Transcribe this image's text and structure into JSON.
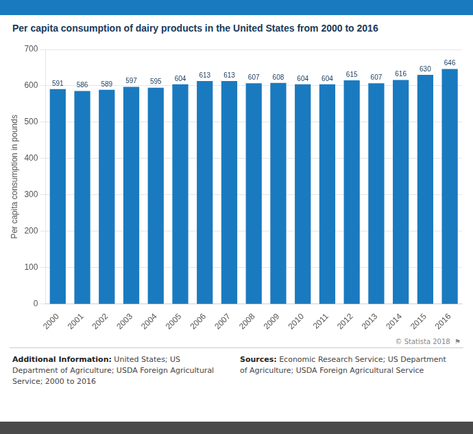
{
  "chart_data": {
    "type": "bar",
    "title": "Per capita consumption of dairy products in the United States from 2000 to 2016",
    "y_label": "Per capita consumption in pounds",
    "categories": [
      "2000",
      "2001",
      "2002",
      "2003",
      "2004",
      "2005",
      "2006",
      "2007",
      "2008",
      "2009",
      "2010",
      "2011",
      "2012",
      "2013",
      "2014",
      "2015",
      "2016"
    ],
    "values": [
      591,
      586,
      589,
      597,
      595,
      604,
      613,
      613,
      607,
      608,
      604,
      604,
      615,
      607,
      616,
      630,
      646
    ],
    "color": "#1a7abf",
    "ylim": [
      0,
      700
    ],
    "yticks": [
      0,
      100,
      200,
      300,
      400,
      500,
      600,
      700
    ],
    "grid": true,
    "data_labels": true,
    "annotations": [
      "© Statista 2018  ⚑",
      "Additional Information:",
      "United States; US",
      "Department of Agriculture; USDA Foreign Agricultural",
      "Service; 2000 to 2016",
      "Sources:",
      "Economic Research Service; US Department",
      "of Agriculture; USDA Foreign Agricultural Service"
    ]
  }
}
